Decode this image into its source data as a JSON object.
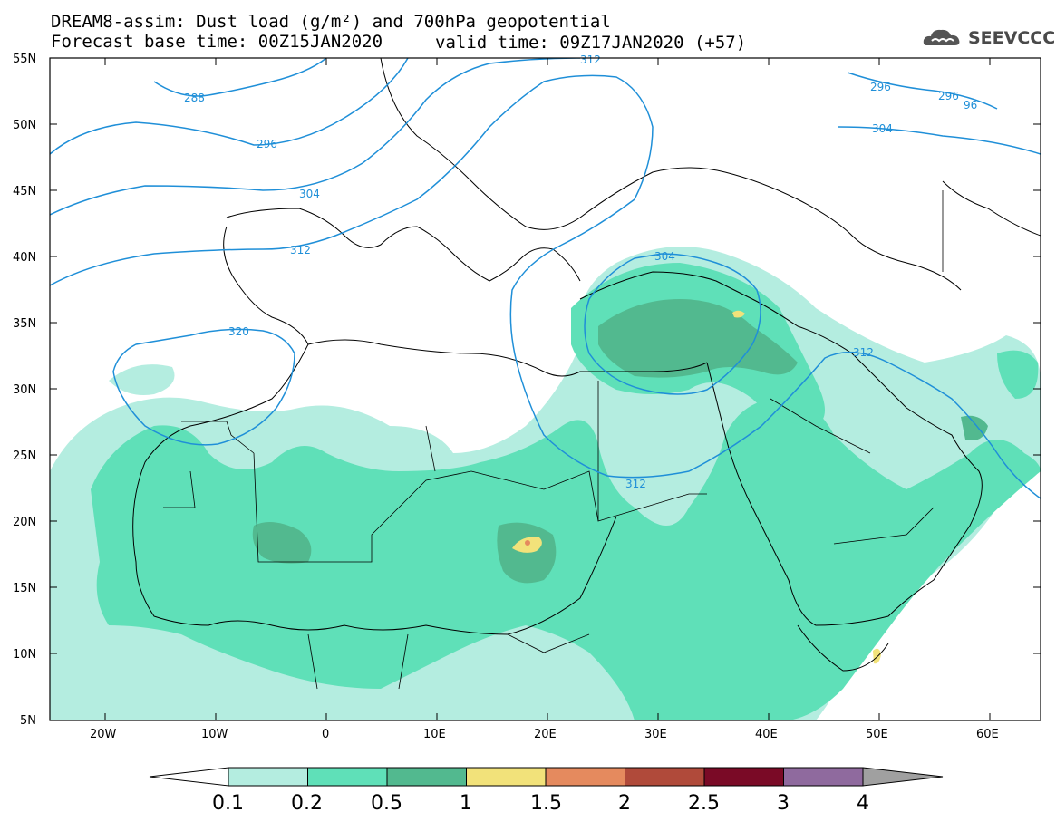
{
  "title": {
    "line1": "DREAM8-assim: Dust load (g/m²) and 700hPa geopotential",
    "base_time": "Forecast base time: 00Z15JAN2020",
    "valid_time": "valid time: 09Z17JAN2020 (+57)"
  },
  "logo": {
    "text": "SEEVCCC",
    "icon": "cloud-icon"
  },
  "axes": {
    "lat_labels": [
      "55N",
      "50N",
      "45N",
      "40N",
      "35N",
      "30N",
      "25N",
      "20N",
      "15N",
      "10N",
      "5N"
    ],
    "lon_labels": [
      "20W",
      "10W",
      "0",
      "10E",
      "20E",
      "30E",
      "40E",
      "50E",
      "60E"
    ]
  },
  "contours": {
    "color": "#1f8fd8",
    "labels": [
      "288",
      "296",
      "304",
      "312",
      "320",
      "312",
      "304",
      "312",
      "296",
      "296",
      "96",
      "304",
      "312"
    ]
  },
  "colorbar": {
    "labels": [
      "0.1",
      "0.2",
      "0.5",
      "1",
      "1.5",
      "2",
      "2.5",
      "3",
      "4"
    ],
    "colors": [
      "#ffffff",
      "#b4ede0",
      "#5fe0b8",
      "#52b98f",
      "#f2e27a",
      "#e58a5e",
      "#b04a3a",
      "#7a0a26",
      "#8f6a9e",
      "#a0a0a0"
    ]
  },
  "dust_colors": {
    "low": "#b4ede0",
    "mid": "#5fe0b8",
    "high": "#52b98f",
    "peak": "#f2e27a",
    "max": "#e58a5e"
  }
}
